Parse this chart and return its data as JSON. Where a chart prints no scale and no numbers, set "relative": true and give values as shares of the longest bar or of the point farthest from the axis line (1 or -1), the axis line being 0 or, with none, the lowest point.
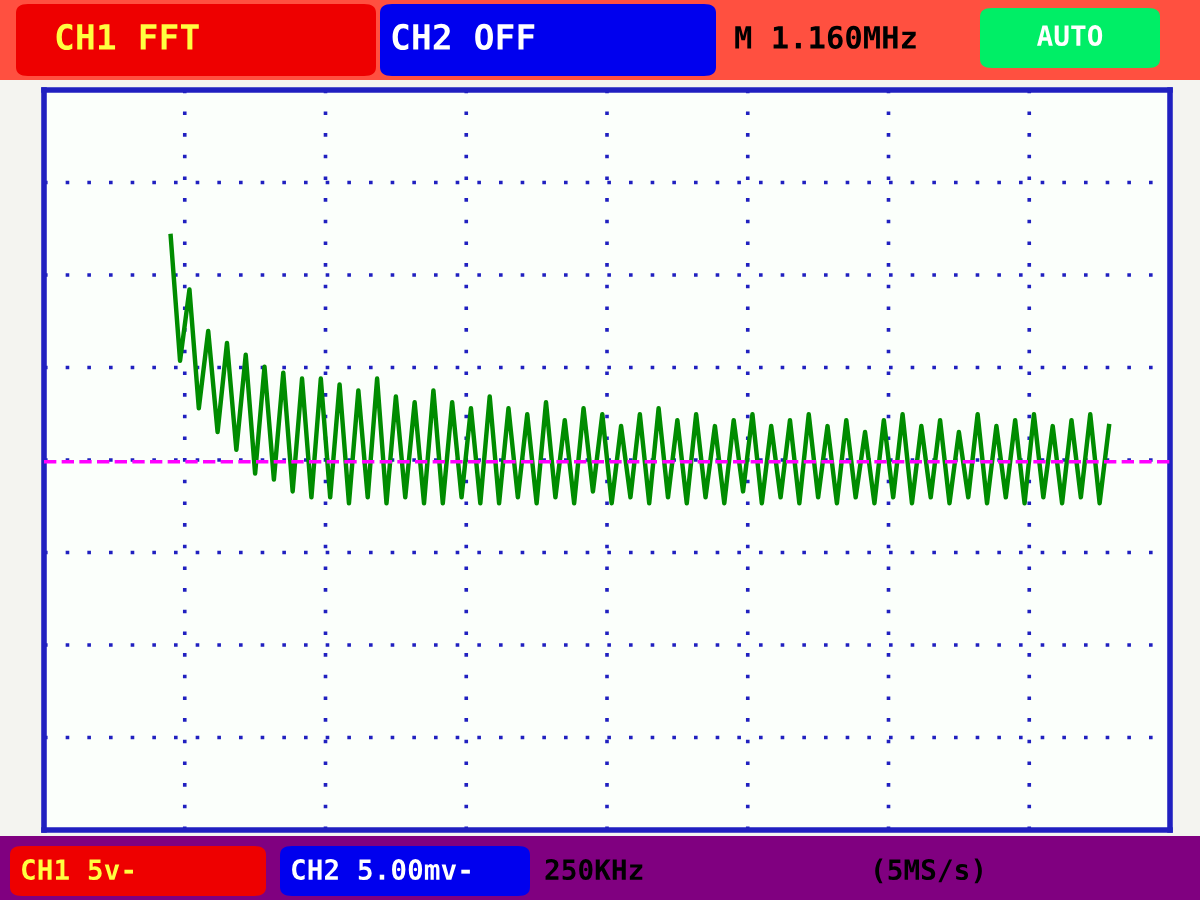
{
  "chart_data": {
    "type": "line",
    "relative": true,
    "grid": true,
    "line_style": "solid",
    "marker": "none",
    "categories": [
      null,
      null,
      null,
      null,
      null,
      null,
      null,
      null,
      null,
      null,
      null,
      null,
      null,
      null,
      null,
      null,
      null,
      null,
      null,
      null,
      null,
      null,
      null,
      null,
      null,
      null,
      null,
      null,
      null,
      null,
      null,
      null,
      null,
      null,
      null,
      null,
      null,
      null,
      null,
      null,
      null,
      null,
      null,
      null,
      null,
      null,
      null,
      null,
      null,
      null,
      null,
      null,
      null,
      null,
      null,
      null,
      null,
      null,
      null,
      null,
      null,
      null,
      null,
      null,
      null,
      null,
      null,
      null,
      null,
      null,
      null,
      null,
      null,
      null,
      null,
      null,
      null,
      null,
      null,
      null,
      null,
      null,
      null,
      null,
      null,
      null,
      null,
      null,
      null,
      null,
      null,
      null,
      null,
      null,
      null,
      null,
      null,
      null,
      null,
      null,
      null,
      null,
      null,
      null,
      null,
      null,
      null,
      null,
      null,
      null,
      null,
      null,
      null,
      null,
      null,
      null,
      null,
      null,
      null,
      null
    ],
    "series": [
      {
        "color": "#008c00",
        "values": [
          null,
          null,
          null,
          null,
          null,
          null,
          null,
          null,
          null,
          null,
          null,
          null,
          null,
          1.0,
          0.79,
          0.91,
          0.71,
          0.84,
          0.67,
          0.82,
          0.64,
          0.8,
          0.6,
          0.78,
          0.59,
          0.77,
          0.57,
          0.76,
          0.56,
          0.76,
          0.56,
          0.75,
          0.55,
          0.74,
          0.56,
          0.76,
          0.55,
          0.73,
          0.56,
          0.72,
          0.55,
          0.74,
          0.55,
          0.72,
          0.56,
          0.71,
          0.55,
          0.73,
          0.55,
          0.71,
          0.56,
          0.7,
          0.55,
          0.72,
          0.56,
          0.69,
          0.55,
          0.71,
          0.57,
          0.7,
          0.55,
          0.68,
          0.56,
          0.7,
          0.55,
          0.71,
          0.56,
          0.69,
          0.55,
          0.7,
          0.56,
          0.68,
          0.55,
          0.69,
          0.57,
          0.7,
          0.55,
          0.68,
          0.56,
          0.69,
          0.55,
          0.7,
          0.56,
          0.68,
          0.55,
          0.69,
          0.56,
          0.67,
          0.55,
          0.69,
          0.56,
          0.7,
          0.55,
          0.68,
          0.56,
          0.69,
          0.55,
          0.67,
          0.56,
          0.7,
          0.55,
          0.68,
          0.56,
          0.69,
          0.55,
          0.7,
          0.56,
          0.68,
          0.55,
          0.69,
          0.56,
          0.7,
          0.55,
          0.68,
          null,
          null,
          null,
          null,
          null,
          null
        ]
      }
    ],
    "ref_lines": [
      {
        "axis": "y",
        "value": 0.62,
        "color": "#ff00ff",
        "line_style": "dashed"
      }
    ],
    "annotations": [
      "CH1 FFT",
      "CH2 OFF",
      "M 1.160MHz",
      "AUTO",
      "CH1 5v-",
      "CH2 5.00mv-",
      "250KHz",
      "(5MS/s)"
    ]
  }
}
